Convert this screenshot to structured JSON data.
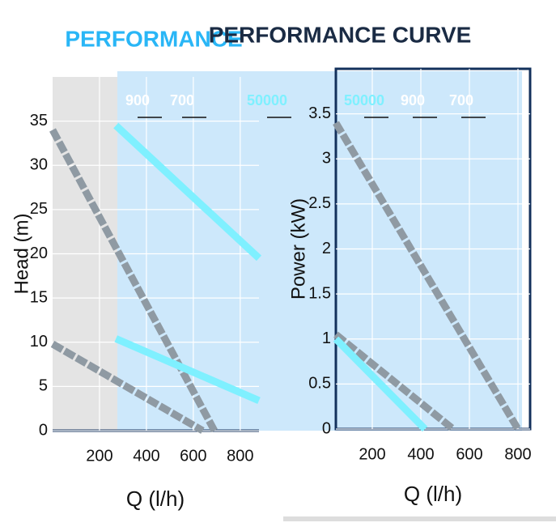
{
  "chart_data": [
    {
      "type": "line",
      "title": "PERFORMANCE",
      "xlabel": "Q (l/h)",
      "ylabel": "Head (m)",
      "xlim": [
        0,
        880
      ],
      "ylim": [
        0,
        40
      ],
      "xticks": [
        200,
        400,
        600,
        800
      ],
      "yticks": [
        0,
        5,
        10,
        15,
        20,
        25,
        30,
        35
      ],
      "grid": true,
      "series": [
        {
          "name": "900",
          "color": "#8f9aa3",
          "x": [
            0,
            690
          ],
          "values": [
            34,
            0
          ]
        },
        {
          "name": "700",
          "color": "#8f9aa3",
          "x": [
            0,
            640
          ],
          "values": [
            9.8,
            0
          ]
        },
        {
          "name": "50000",
          "color": "#7ff0ff",
          "x": [
            270,
            880
          ],
          "values": [
            34.5,
            19.5
          ]
        },
        {
          "name": "50000",
          "color": "#7ff0ff",
          "x": [
            270,
            880
          ],
          "values": [
            10.4,
            3.4
          ]
        }
      ],
      "annotations": [
        "900",
        "700",
        "50000"
      ]
    },
    {
      "type": "line",
      "title": "PERFORMANCE CURVE",
      "xlabel": "Q (l/h)",
      "ylabel": "Power (kW)",
      "xlim": [
        50,
        850
      ],
      "ylim": [
        0,
        4
      ],
      "xticks": [
        200,
        400,
        600,
        800
      ],
      "yticks": [
        0,
        0.5,
        1.0,
        1.5,
        2.0,
        2.5,
        3.0,
        3.5
      ],
      "grid": true,
      "series": [
        {
          "name": "900",
          "color": "#8f9aa3",
          "x": [
            50,
            800
          ],
          "values": [
            3.4,
            0
          ]
        },
        {
          "name": "700",
          "color": "#8f9aa3",
          "x": [
            50,
            533
          ],
          "values": [
            1.05,
            0
          ]
        },
        {
          "name": "50000",
          "color": "#7ff0ff",
          "x": [
            50,
            417
          ],
          "values": [
            1.0,
            0
          ]
        }
      ],
      "annotations": [
        "50000",
        "900",
        "700"
      ]
    }
  ]
}
